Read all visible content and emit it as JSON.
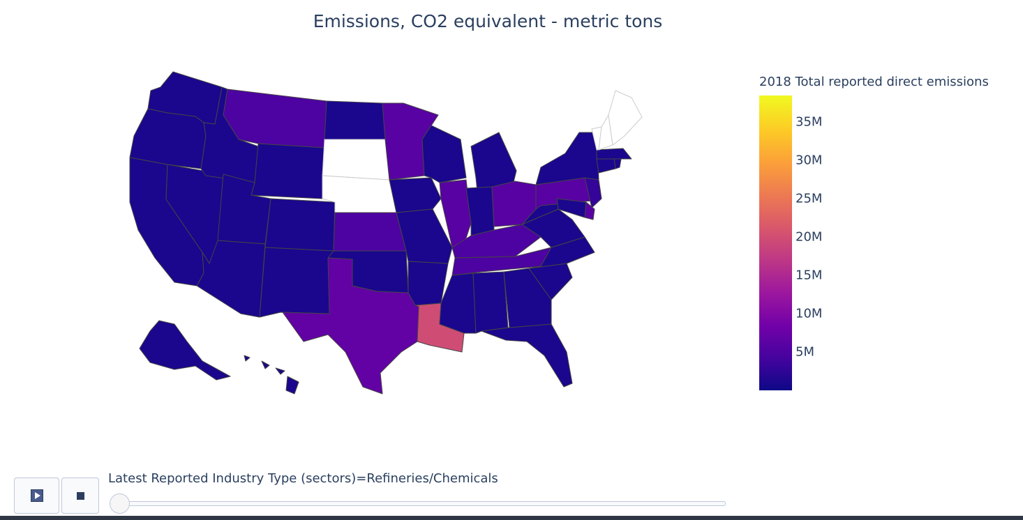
{
  "chart_data": {
    "type": "choropleth",
    "title": "Emissions, CO2 equivalent - metric tons",
    "geo_scope": "usa",
    "colorbar": {
      "title": "2018 Total reported direct emissions",
      "colorscale": "plasma",
      "range": [
        0,
        38500000
      ],
      "ticks": [
        {
          "value": 5000000,
          "label": "5M"
        },
        {
          "value": 10000000,
          "label": "10M"
        },
        {
          "value": 15000000,
          "label": "15M"
        },
        {
          "value": 20000000,
          "label": "20M"
        },
        {
          "value": 25000000,
          "label": "25M"
        },
        {
          "value": 30000000,
          "label": "30M"
        },
        {
          "value": 35000000,
          "label": "35M"
        }
      ]
    },
    "values": {
      "WA": 1000000,
      "OR": 1000000,
      "CA": 1000000,
      "NV": 1000000,
      "ID": 1000000,
      "MT": 5000000,
      "WY": 1000000,
      "UT": 1000000,
      "AZ": 1000000,
      "CO": 1000000,
      "NM": 1000000,
      "ND": 1000000,
      "SD": null,
      "NE": null,
      "KS": 5000000,
      "OK": 1000000,
      "TX": 7000000,
      "MN": 6000000,
      "IA": 1000000,
      "MO": 1000000,
      "AR": 1000000,
      "LA": 20000000,
      "WI": 1000000,
      "IL": 6000000,
      "MI": 1000000,
      "IN": 1000000,
      "OH": 6000000,
      "KY": 5000000,
      "TN": 5000000,
      "MS": 1000000,
      "AL": 1000000,
      "GA": 1000000,
      "FL": 1000000,
      "SC": 1000000,
      "NC": 1000000,
      "VA": 1000000,
      "WV": 1000000,
      "PA": 6000000,
      "NY": 1000000,
      "NJ": 3000000,
      "DE": 6000000,
      "MD": 1000000,
      "CT": 1000000,
      "RI": 1000000,
      "MA": 1000000,
      "VT": null,
      "NH": null,
      "ME": null,
      "AK": 1000000,
      "HI": 1000000
    }
  },
  "animation": {
    "play_icon": "play-icon",
    "stop_icon": "stop-icon",
    "slider_label": "Latest Reported Industry Type (sectors)=Refineries/Chemicals",
    "slider_position": 0
  },
  "colors": {
    "text": "#2a3f5f",
    "state_border": "#444444",
    "no_data": "#ffffff",
    "low": "#0d0887",
    "mid": "#cc4778",
    "high": "#f0f921"
  }
}
